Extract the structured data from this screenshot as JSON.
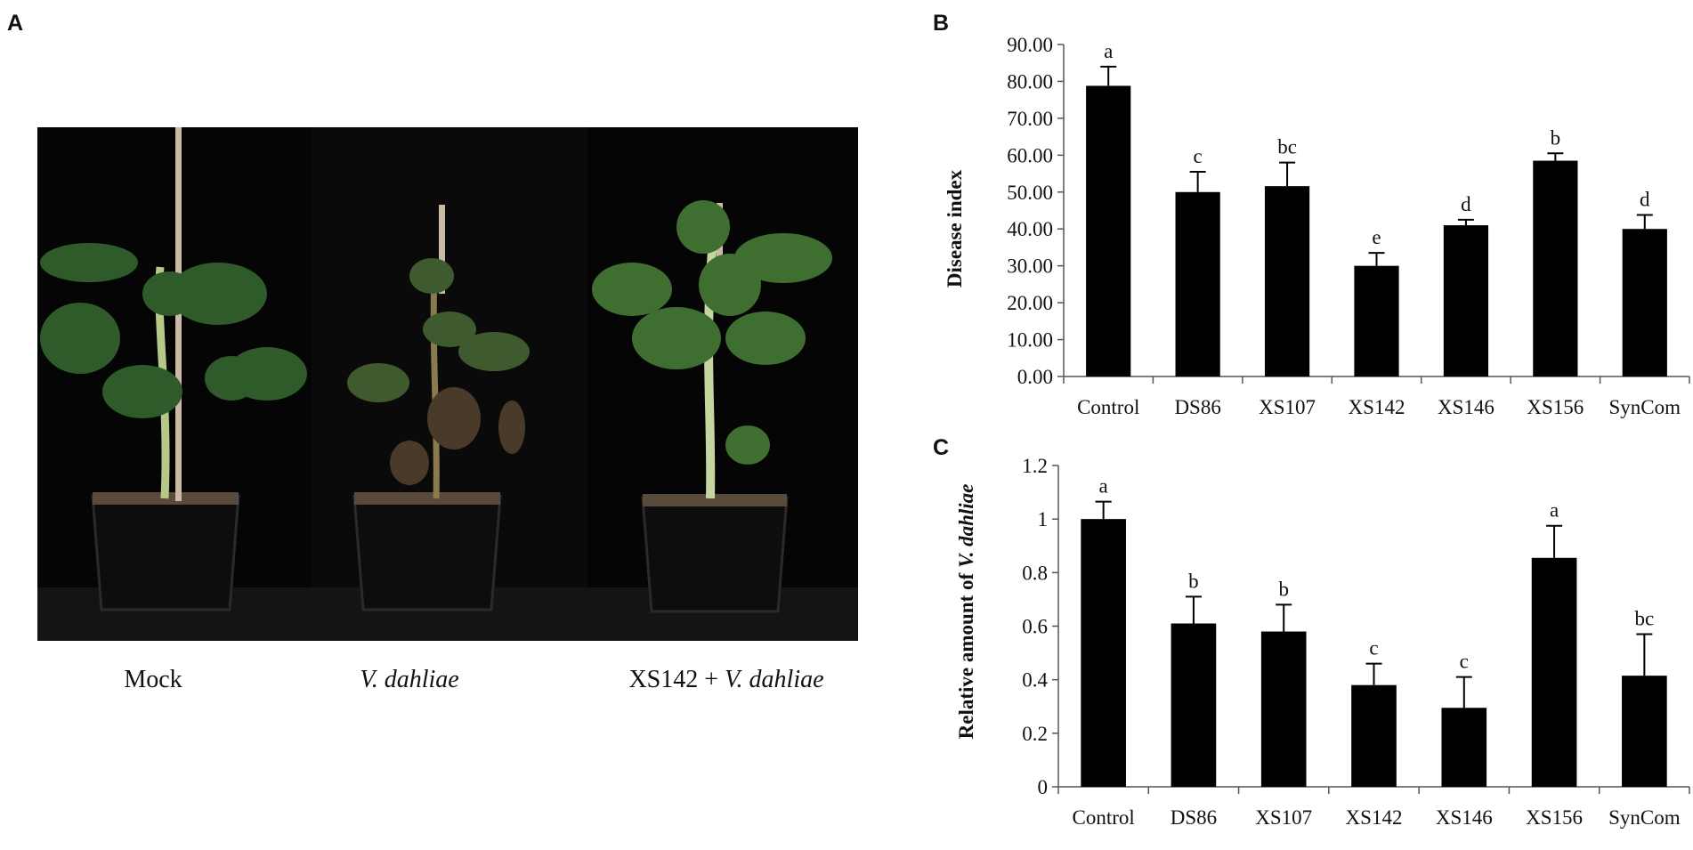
{
  "panel_labels": [
    "A",
    "B",
    "C"
  ],
  "photo_captions": {
    "mock": "Mock",
    "infected": "V. dahliae",
    "treated": [
      "XS142 +",
      "V. dahliae"
    ]
  },
  "chart_data": [
    {
      "type": "bar",
      "y_label": [
        "Disease index"
      ],
      "categories": [
        "Control",
        "DS86",
        "XS107",
        "XS142",
        "XS146",
        "XS156",
        "SynCom"
      ],
      "values": [
        78.8,
        50,
        51.6,
        30,
        41,
        58.5,
        40
      ],
      "errors": [
        5.2,
        5.5,
        6.4,
        3.5,
        1.5,
        2,
        3.8
      ],
      "letters": [
        "a",
        "c",
        "bc",
        "e",
        "d",
        "b",
        "d"
      ],
      "color": "#000000",
      "ylim": [
        0,
        90
      ],
      "yticks": [
        {
          "value": 0,
          "label": "0.00"
        },
        {
          "value": 10,
          "label": "10.00"
        },
        {
          "value": 20,
          "label": "20.00"
        },
        {
          "value": 30,
          "label": "30.00"
        },
        {
          "value": 40,
          "label": "40.00"
        },
        {
          "value": 50,
          "label": "50.00"
        },
        {
          "value": 60,
          "label": "60.00"
        },
        {
          "value": 70,
          "label": "70.00"
        },
        {
          "value": 80,
          "label": "80.00"
        },
        {
          "value": 90,
          "label": "90.00"
        }
      ]
    },
    {
      "type": "bar",
      "y_label": [
        "Relative amount of",
        "V. dahliae"
      ],
      "categories": [
        "Control",
        "DS86",
        "XS107",
        "XS142",
        "XS146",
        "XS156",
        "SynCom"
      ],
      "values": [
        1.0,
        0.61,
        0.58,
        0.38,
        0.295,
        0.855,
        0.415
      ],
      "errors": [
        0.065,
        0.1,
        0.1,
        0.08,
        0.115,
        0.12,
        0.155
      ],
      "letters": [
        "a",
        "b",
        "b",
        "c",
        "c",
        "a",
        "bc"
      ],
      "color": "#000000",
      "ylim": [
        0,
        1.2
      ],
      "yticks": [
        0,
        0.2,
        0.4,
        0.6,
        0.8,
        1,
        1.2
      ]
    }
  ]
}
